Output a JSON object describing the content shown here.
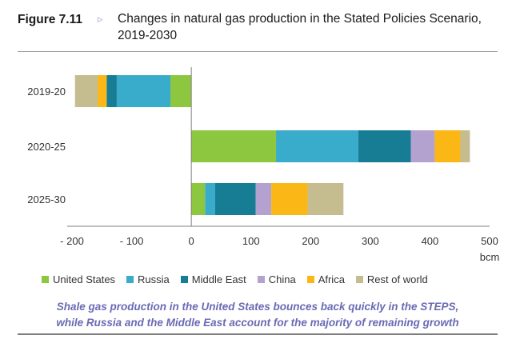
{
  "figure": {
    "label": "Figure 7.11",
    "arrow": "▹",
    "title": "Changes in natural gas production in the Stated Policies Scenario, 2019-2030"
  },
  "caption": {
    "line1": "Shale gas production in the United States bounces back quickly in the STEPS,",
    "line2": "while Russia and the Middle East account for the majority of remaining growth"
  },
  "chart_data": {
    "type": "bar",
    "orientation": "horizontal",
    "stacked": true,
    "categories": [
      "2019-20",
      "2020-25",
      "2025-30"
    ],
    "series": [
      {
        "name": "United States",
        "color": "#8dc63f",
        "values": [
          -35,
          142,
          23
        ]
      },
      {
        "name": "Russia",
        "color": "#3aaccb",
        "values": [
          -90,
          138,
          17
        ]
      },
      {
        "name": "Middle East",
        "color": "#177d94",
        "values": [
          -17,
          88,
          68
        ]
      },
      {
        "name": "China",
        "color": "#b3a2cf",
        "values": [
          0,
          40,
          26
        ]
      },
      {
        "name": "Africa",
        "color": "#fbb716",
        "values": [
          -15,
          43,
          61
        ]
      },
      {
        "name": "Rest of world",
        "color": "#c5bc8f",
        "values": [
          -38,
          16,
          60
        ]
      }
    ],
    "xlim": [
      -200,
      500
    ],
    "xticks": [
      -200,
      -100,
      0,
      100,
      200,
      300,
      400,
      500
    ],
    "xtick_labels": [
      "- 200",
      "- 100",
      "0",
      "100",
      "200",
      "300",
      "400",
      "500"
    ],
    "xunit": "bcm",
    "grid": false,
    "legend_position": "bottom"
  }
}
